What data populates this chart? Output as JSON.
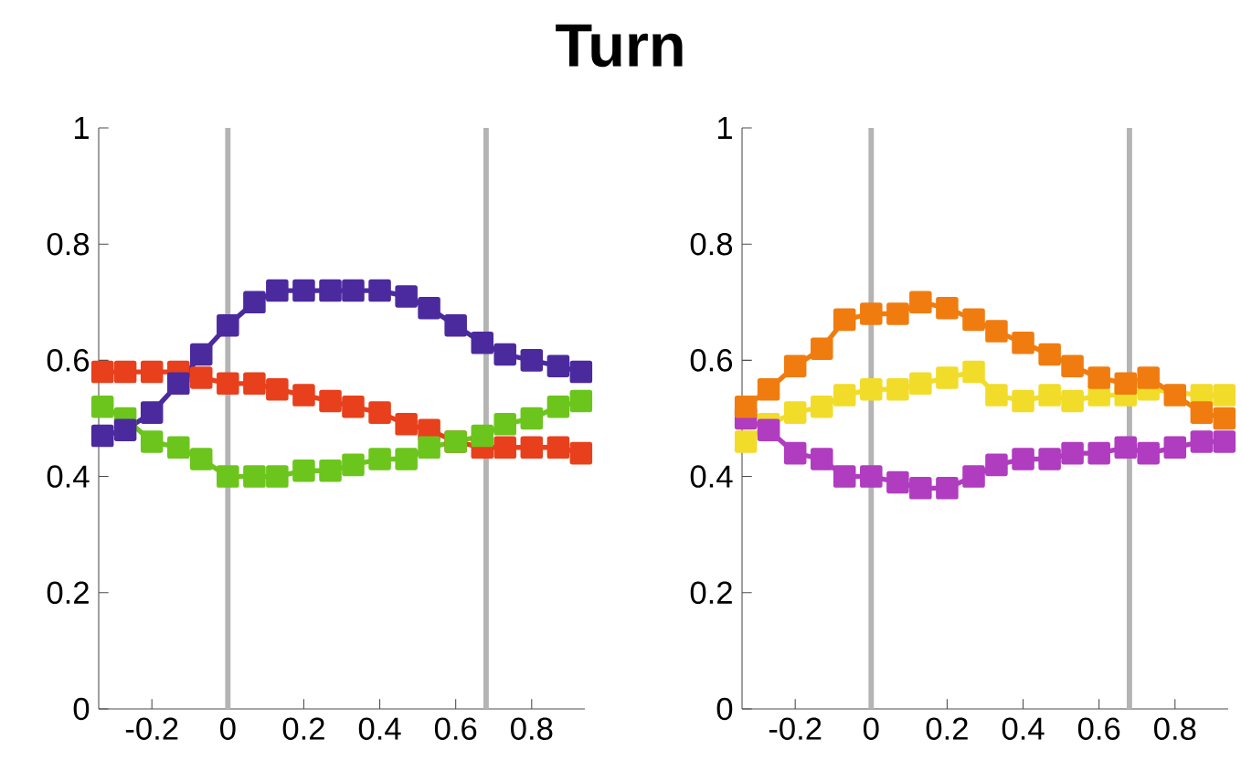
{
  "chart_data": [
    {
      "type": "line",
      "title": "Turn",
      "x": [
        -0.33,
        -0.27,
        -0.2,
        -0.13,
        -0.07,
        0,
        0.07,
        0.13,
        0.2,
        0.27,
        0.33,
        0.4,
        0.47,
        0.53,
        0.6,
        0.67,
        0.73,
        0.8,
        0.87,
        0.93
      ],
      "xlim": [
        -0.34,
        0.94
      ],
      "ylim": [
        0,
        1
      ],
      "xticks": [
        -0.2,
        0,
        0.2,
        0.4,
        0.6,
        0.8
      ],
      "yticks": [
        0,
        0.2,
        0.4,
        0.6,
        0.8,
        1
      ],
      "marker": "square",
      "line_style": "solid",
      "ref_lines": [
        {
          "axis": "x",
          "value": 0,
          "color": "#b4b4b4"
        },
        {
          "axis": "x",
          "value": 0.68,
          "color": "#b4b4b4"
        }
      ],
      "series": [
        {
          "color": "#e8401c",
          "values": [
            0.58,
            0.58,
            0.58,
            0.58,
            0.57,
            0.56,
            0.56,
            0.55,
            0.54,
            0.53,
            0.52,
            0.51,
            0.49,
            0.48,
            0.46,
            0.45,
            0.45,
            0.45,
            0.45,
            0.44
          ]
        },
        {
          "color": "#6cc51c",
          "values": [
            0.52,
            0.5,
            0.46,
            0.45,
            0.43,
            0.4,
            0.4,
            0.4,
            0.41,
            0.41,
            0.42,
            0.43,
            0.43,
            0.45,
            0.46,
            0.47,
            0.49,
            0.5,
            0.52,
            0.53
          ]
        },
        {
          "color": "#4b2a9e",
          "values": [
            0.47,
            0.48,
            0.51,
            0.56,
            0.61,
            0.66,
            0.7,
            0.72,
            0.72,
            0.72,
            0.72,
            0.72,
            0.71,
            0.69,
            0.66,
            0.63,
            0.61,
            0.6,
            0.59,
            0.58
          ]
        }
      ]
    },
    {
      "type": "line",
      "x": [
        -0.33,
        -0.27,
        -0.2,
        -0.13,
        -0.07,
        0,
        0.07,
        0.13,
        0.2,
        0.27,
        0.33,
        0.4,
        0.47,
        0.53,
        0.6,
        0.67,
        0.73,
        0.8,
        0.87,
        0.93
      ],
      "xlim": [
        -0.34,
        0.94
      ],
      "ylim": [
        0,
        1
      ],
      "xticks": [
        -0.2,
        0,
        0.2,
        0.4,
        0.6,
        0.8
      ],
      "yticks": [
        0,
        0.2,
        0.4,
        0.6,
        0.8,
        1
      ],
      "marker": "square",
      "line_style": "solid",
      "ref_lines": [
        {
          "axis": "x",
          "value": 0,
          "color": "#b4b4b4"
        },
        {
          "axis": "x",
          "value": 0.68,
          "color": "#b4b4b4"
        }
      ],
      "series": [
        {
          "color": "#f2dc2a",
          "values": [
            0.46,
            0.49,
            0.51,
            0.52,
            0.54,
            0.55,
            0.55,
            0.56,
            0.57,
            0.58,
            0.54,
            0.53,
            0.54,
            0.53,
            0.54,
            0.54,
            0.55,
            null,
            0.54,
            0.54
          ]
        },
        {
          "color": "#b03cc0",
          "values": [
            0.5,
            0.48,
            0.44,
            0.43,
            0.4,
            0.4,
            0.39,
            0.38,
            0.38,
            0.4,
            0.42,
            0.43,
            0.43,
            0.44,
            0.44,
            0.45,
            0.44,
            0.45,
            0.46,
            0.46
          ]
        },
        {
          "color": "#f07c10",
          "values": [
            0.52,
            0.55,
            0.59,
            0.62,
            0.67,
            0.68,
            0.68,
            0.7,
            0.69,
            0.67,
            0.65,
            0.63,
            0.61,
            0.59,
            0.57,
            0.56,
            0.57,
            0.54,
            0.51,
            0.5
          ]
        }
      ]
    }
  ]
}
